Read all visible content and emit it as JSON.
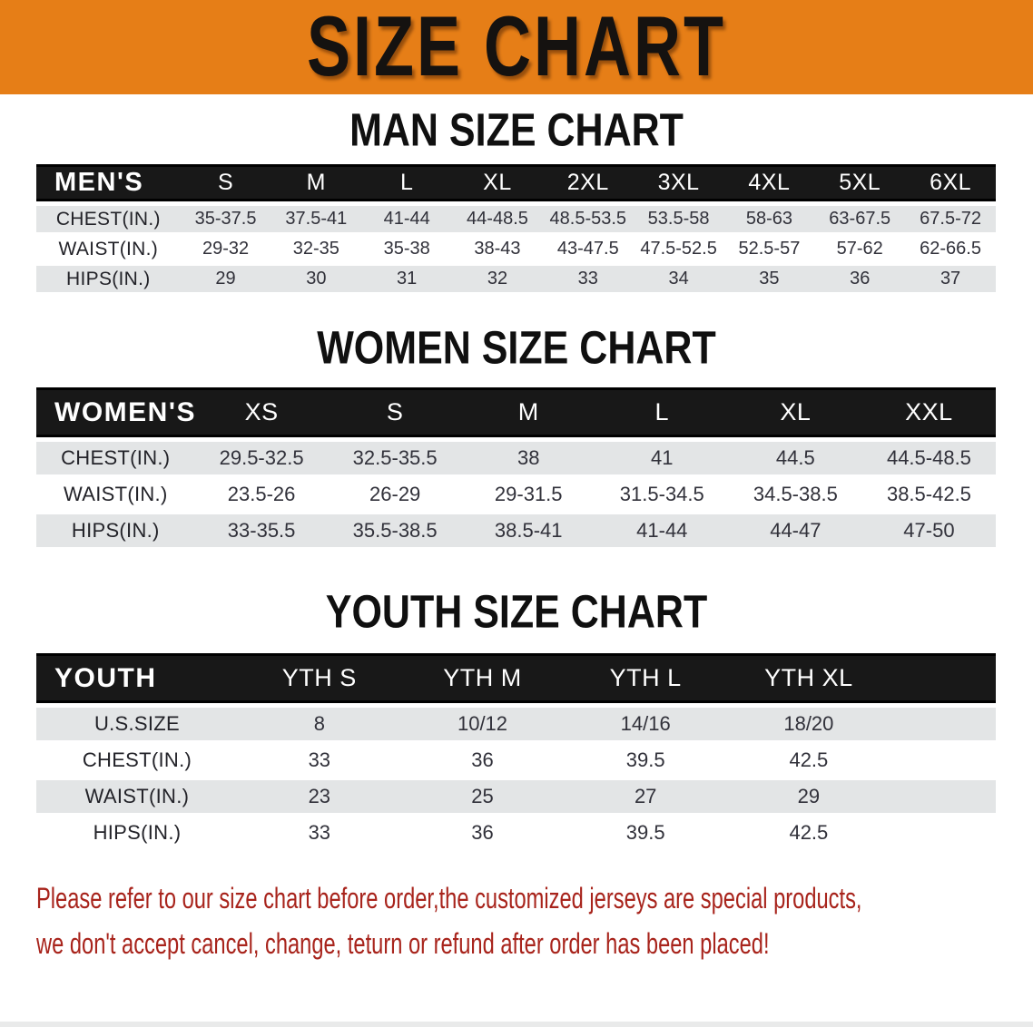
{
  "banner": {
    "title": "SIZE CHART"
  },
  "sections": [
    {
      "id": "men",
      "heading": "MAN SIZE CHART",
      "table": {
        "corner": "MEN'S",
        "columns": [
          "S",
          "M",
          "L",
          "XL",
          "2XL",
          "3XL",
          "4XL",
          "5XL",
          "6XL"
        ],
        "rows": [
          {
            "label": "CHEST(IN.)",
            "values": [
              "35-37.5",
              "37.5-41",
              "41-44",
              "44-48.5",
              "48.5-53.5",
              "53.5-58",
              "58-63",
              "63-67.5",
              "67.5-72"
            ]
          },
          {
            "label": "WAIST(IN.)",
            "values": [
              "29-32",
              "32-35",
              "35-38",
              "38-43",
              "43-47.5",
              "47.5-52.5",
              "52.5-57",
              "57-62",
              "62-66.5"
            ]
          },
          {
            "label": "HIPS(IN.)",
            "values": [
              "29",
              "30",
              "31",
              "32",
              "33",
              "34",
              "35",
              "36",
              "37"
            ]
          }
        ]
      }
    },
    {
      "id": "women",
      "heading": "WOMEN SIZE CHART",
      "table": {
        "corner": "WOMEN'S",
        "columns": [
          "XS",
          "S",
          "M",
          "L",
          "XL",
          "XXL"
        ],
        "rows": [
          {
            "label": "CHEST(IN.)",
            "values": [
              "29.5-32.5",
              "32.5-35.5",
              "38",
              "41",
              "44.5",
              "44.5-48.5"
            ]
          },
          {
            "label": "WAIST(IN.)",
            "values": [
              "23.5-26",
              "26-29",
              "29-31.5",
              "31.5-34.5",
              "34.5-38.5",
              "38.5-42.5"
            ]
          },
          {
            "label": "HIPS(IN.)",
            "values": [
              "33-35.5",
              "35.5-38.5",
              "38.5-41",
              "41-44",
              "44-47",
              "47-50"
            ]
          }
        ]
      }
    },
    {
      "id": "youth",
      "heading": "YOUTH SIZE CHART",
      "table": {
        "corner": "YOUTH",
        "columns": [
          "YTH S",
          "YTH M",
          "YTH L",
          "YTH XL"
        ],
        "rows": [
          {
            "label": "U.S.SIZE",
            "values": [
              "8",
              "10/12",
              "14/16",
              "18/20"
            ]
          },
          {
            "label": "CHEST(IN.)",
            "values": [
              "33",
              "36",
              "39.5",
              "42.5"
            ]
          },
          {
            "label": "WAIST(IN.)",
            "values": [
              "23",
              "25",
              "27",
              "29"
            ]
          },
          {
            "label": "HIPS(IN.)",
            "values": [
              "33",
              "36",
              "39.5",
              "42.5"
            ]
          }
        ]
      }
    }
  ],
  "footer": {
    "line1": "Please refer to our size chart before order,the customized jerseys are special products,",
    "line2": "we don't accept cancel, change, teturn or refund after order has been placed!"
  },
  "colors": {
    "banner_background": "#E67E17",
    "header_band": "#181818",
    "row_stripe": "#E3E5E6",
    "notice_text": "#A8241C"
  }
}
